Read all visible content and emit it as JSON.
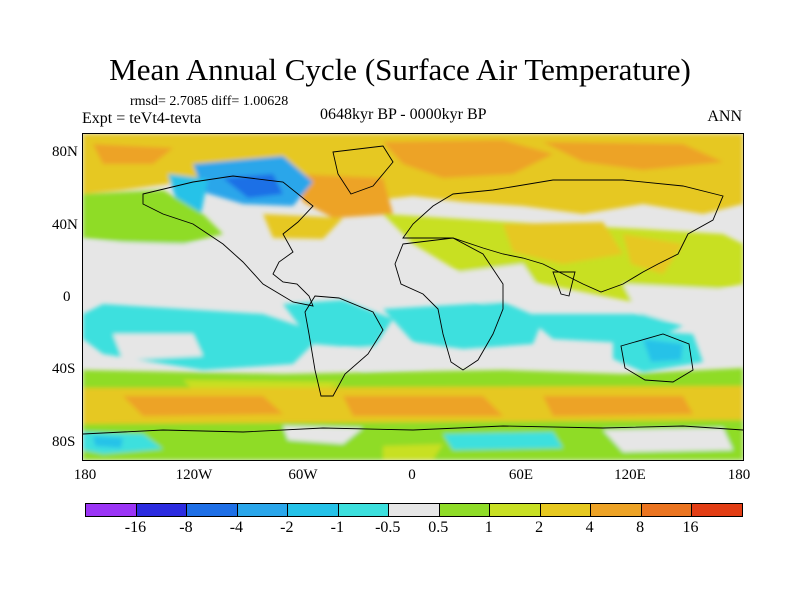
{
  "title": "Mean Annual Cycle (Surface Air Temperature)",
  "stats_line": "rmsd= 2.7085 diff= 1.00628",
  "experiment": "Expt = teVt4-tevta",
  "period": "0648kyr BP - 0000kyr BP",
  "season": "ANN",
  "map": {
    "projection": "cylindrical equidistant",
    "lon_range": [
      -180,
      180
    ],
    "lat_range": [
      -90,
      90
    ],
    "y_ticks": [
      "80N",
      "40N",
      "0",
      "40S",
      "80S"
    ],
    "x_ticks": [
      "180",
      "120W",
      "60W",
      "0",
      "60E",
      "120E",
      "180"
    ]
  },
  "colorbar": {
    "colors": [
      "#9b35f5",
      "#2c2ce0",
      "#1e6fe6",
      "#2aa6ea",
      "#25c2e8",
      "#3ce0de",
      "#e6e6e6",
      "#8fdc28",
      "#c8e024",
      "#e6c820",
      "#eda326",
      "#ea7420",
      "#e23d14"
    ],
    "labels": [
      "-16",
      "-8",
      "-4",
      "-2",
      "-1",
      "-0.5",
      "0.5",
      "1",
      "2",
      "4",
      "8",
      "16"
    ]
  },
  "chart_data": {
    "type": "heatmap",
    "title": "Mean Annual Cycle (Surface Air Temperature)",
    "x_tick_labels": [
      "180",
      "120W",
      "60W",
      "0",
      "60E",
      "120E",
      "180"
    ],
    "y_tick_labels": [
      "80N",
      "40N",
      "0",
      "40S",
      "80S"
    ],
    "color_levels": [
      -16,
      -8,
      -4,
      -2,
      -1,
      -0.5,
      0.5,
      1,
      2,
      4,
      8,
      16
    ]
  }
}
